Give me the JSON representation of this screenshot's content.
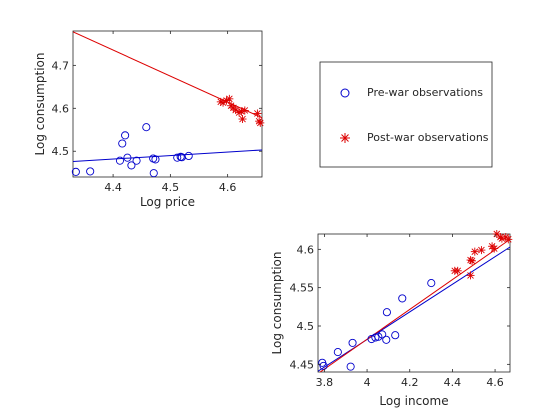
{
  "chart_data": [
    {
      "type": "scatter",
      "xlabel": "Log price",
      "ylabel": "Log consumption",
      "xlim": [
        4.33,
        4.66
      ],
      "ylim": [
        4.44,
        4.78
      ],
      "xticks": [
        4.4,
        4.5,
        4.6
      ],
      "xtick_labels": [
        "4.4",
        "4.5",
        "4.6"
      ],
      "yticks": [
        4.5,
        4.6,
        4.7
      ],
      "ytick_labels": [
        "4.5",
        "4.6",
        "4.7"
      ],
      "grid": false,
      "series": [
        {
          "name": "Pre-war observations",
          "marker": "circle",
          "color": "#0000cc",
          "points": [
            [
              4.335,
              4.452
            ],
            [
              4.36,
              4.453
            ],
            [
              4.412,
              4.478
            ],
            [
              4.416,
              4.518
            ],
            [
              4.421,
              4.537
            ],
            [
              4.425,
              4.485
            ],
            [
              4.432,
              4.467
            ],
            [
              4.441,
              4.478
            ],
            [
              4.458,
              4.556
            ],
            [
              4.471,
              4.449
            ],
            [
              4.47,
              4.483
            ],
            [
              4.474,
              4.481
            ],
            [
              4.512,
              4.485
            ],
            [
              4.518,
              4.487
            ],
            [
              4.52,
              4.486
            ],
            [
              4.532,
              4.489
            ]
          ]
        },
        {
          "name": "Post-war observations",
          "marker": "asterisk",
          "color": "#dd0000",
          "points": [
            [
              4.588,
              4.615
            ],
            [
              4.592,
              4.613
            ],
            [
              4.598,
              4.618
            ],
            [
              4.603,
              4.622
            ],
            [
              4.606,
              4.606
            ],
            [
              4.61,
              4.601
            ],
            [
              4.614,
              4.596
            ],
            [
              4.62,
              4.59
            ],
            [
              4.624,
              4.593
            ],
            [
              4.626,
              4.575
            ],
            [
              4.63,
              4.595
            ],
            [
              4.652,
              4.588
            ],
            [
              4.655,
              4.57
            ],
            [
              4.657,
              4.566
            ]
          ]
        }
      ],
      "fit_lines": [
        {
          "color": "#0000cc",
          "from": [
            4.33,
            4.476
          ],
          "to": [
            4.66,
            4.503
          ]
        },
        {
          "color": "#dd0000",
          "from": [
            4.33,
            4.778
          ],
          "to": [
            4.66,
            4.578
          ]
        }
      ]
    },
    {
      "type": "scatter",
      "xlabel": "Log income",
      "ylabel": "Log consumption",
      "xlim": [
        3.77,
        4.67
      ],
      "ylim": [
        4.44,
        4.62
      ],
      "xticks": [
        3.8,
        4.0,
        4.2,
        4.4,
        4.6
      ],
      "xtick_labels": [
        "3.8",
        "4",
        "4.2",
        "4.4",
        "4.6"
      ],
      "yticks": [
        4.45,
        4.5,
        4.55,
        4.6
      ],
      "ytick_labels": [
        "4.45",
        "4.5",
        "4.55",
        "4.6"
      ],
      "grid": false,
      "series": [
        {
          "name": "Pre-war observations",
          "marker": "circle",
          "color": "#0000cc",
          "points": [
            [
              3.79,
              4.452
            ],
            [
              3.796,
              4.448
            ],
            [
              3.863,
              4.466
            ],
            [
              3.923,
              4.447
            ],
            [
              3.932,
              4.478
            ],
            [
              4.021,
              4.483
            ],
            [
              4.039,
              4.485
            ],
            [
              4.053,
              4.486
            ],
            [
              4.071,
              4.489
            ],
            [
              4.09,
              4.482
            ],
            [
              4.093,
              4.518
            ],
            [
              4.132,
              4.488
            ],
            [
              4.165,
              4.536
            ],
            [
              4.301,
              4.556
            ]
          ]
        },
        {
          "name": "Post-war observations",
          "marker": "asterisk",
          "color": "#dd0000",
          "points": [
            [
              4.411,
              4.572
            ],
            [
              4.425,
              4.572
            ],
            [
              4.485,
              4.566
            ],
            [
              4.485,
              4.586
            ],
            [
              4.492,
              4.585
            ],
            [
              4.505,
              4.597
            ],
            [
              4.536,
              4.599
            ],
            [
              4.586,
              4.604
            ],
            [
              4.596,
              4.601
            ],
            [
              4.608,
              4.62
            ],
            [
              4.625,
              4.616
            ],
            [
              4.632,
              4.614
            ],
            [
              4.65,
              4.616
            ],
            [
              4.662,
              4.613
            ]
          ]
        }
      ],
      "fit_lines": [
        {
          "color": "#0000cc",
          "from": [
            3.77,
            4.441
          ],
          "to": [
            4.67,
            4.603
          ]
        },
        {
          "color": "#dd0000",
          "from": [
            3.77,
            4.438
          ],
          "to": [
            4.67,
            4.613
          ]
        }
      ]
    }
  ],
  "legend": {
    "entries": [
      {
        "label": "Pre-war observations",
        "marker": "circle",
        "color": "#0000cc"
      },
      {
        "label": "Post-war observations",
        "marker": "asterisk",
        "color": "#dd0000"
      }
    ]
  }
}
